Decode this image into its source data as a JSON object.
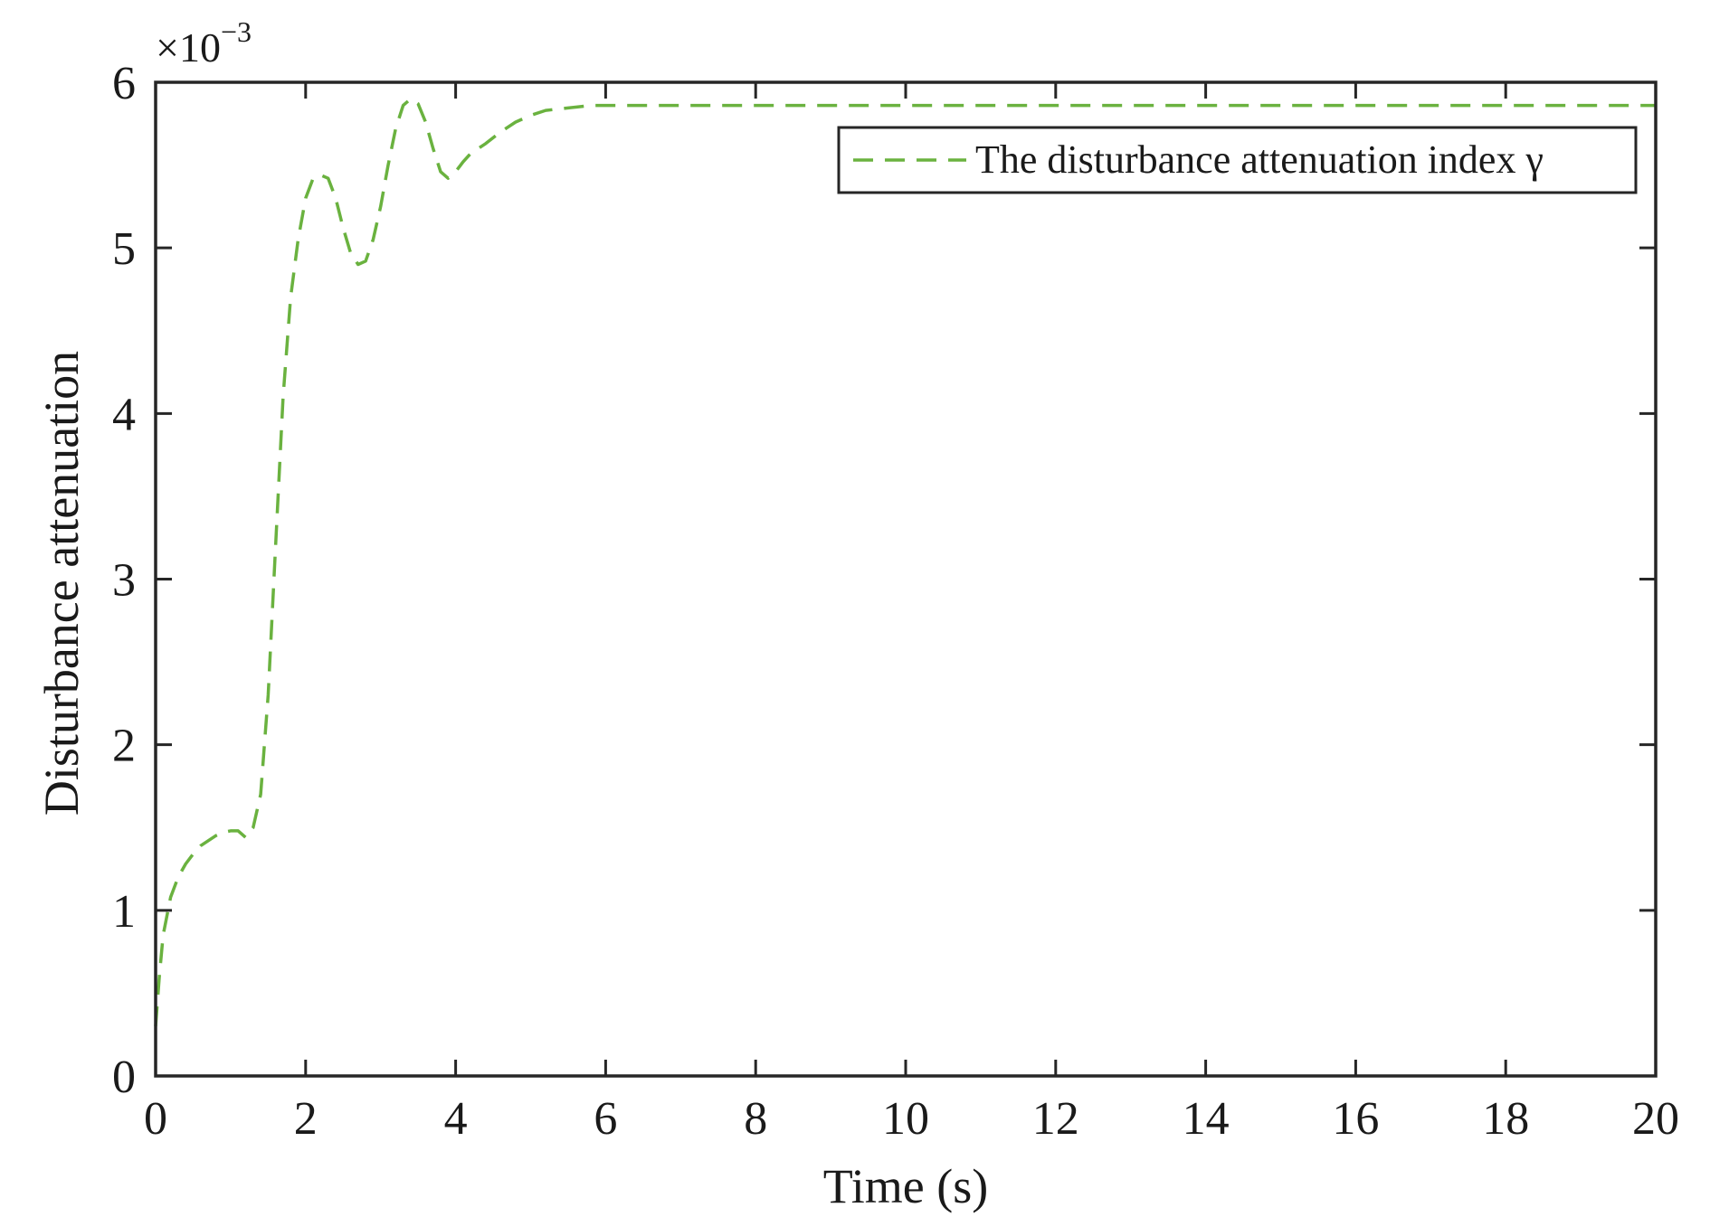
{
  "chart_data": {
    "type": "line",
    "xlabel": "Time (s)",
    "ylabel": "Disturbance attenuation",
    "xlim": [
      0,
      20
    ],
    "ylim": [
      0,
      6
    ],
    "xticks": [
      "0",
      "2",
      "4",
      "6",
      "8",
      "10",
      "12",
      "14",
      "16",
      "18",
      "20"
    ],
    "yticks": [
      "0",
      "1",
      "2",
      "3",
      "4",
      "5",
      "6"
    ],
    "y_multiplier": {
      "base": "×10",
      "exponent": "−3"
    },
    "grid": false,
    "legend_position": "top-right",
    "series": [
      {
        "name": "The disturbance attenuation index γ",
        "color": "#6ab23f",
        "style": "dashed",
        "x": [
          0,
          0.05,
          0.1,
          0.2,
          0.3,
          0.4,
          0.5,
          0.6,
          0.7,
          0.8,
          0.9,
          1.0,
          1.1,
          1.2,
          1.3,
          1.4,
          1.5,
          1.6,
          1.7,
          1.8,
          1.9,
          2.0,
          2.1,
          2.2,
          2.3,
          2.4,
          2.5,
          2.6,
          2.7,
          2.8,
          2.9,
          3.0,
          3.1,
          3.2,
          3.3,
          3.4,
          3.5,
          3.6,
          3.7,
          3.8,
          3.9,
          4.0,
          4.1,
          4.2,
          4.4,
          4.6,
          4.8,
          5.0,
          5.2,
          5.4,
          5.6,
          5.8,
          6.0,
          6.5,
          7.0,
          8.0,
          9.0,
          10.0,
          12.0,
          14.0,
          16.0,
          18.0,
          20.0
        ],
        "y": [
          0.3,
          0.6,
          0.85,
          1.08,
          1.2,
          1.28,
          1.34,
          1.39,
          1.42,
          1.45,
          1.47,
          1.48,
          1.48,
          1.44,
          1.5,
          1.7,
          2.3,
          3.2,
          4.1,
          4.7,
          5.05,
          5.3,
          5.42,
          5.44,
          5.42,
          5.3,
          5.12,
          4.97,
          4.9,
          4.92,
          5.05,
          5.25,
          5.5,
          5.72,
          5.86,
          5.9,
          5.87,
          5.76,
          5.6,
          5.46,
          5.42,
          5.46,
          5.52,
          5.57,
          5.63,
          5.7,
          5.76,
          5.8,
          5.83,
          5.84,
          5.85,
          5.86,
          5.86,
          5.86,
          5.86,
          5.86,
          5.86,
          5.86,
          5.86,
          5.86,
          5.86,
          5.86,
          5.86
        ]
      }
    ]
  }
}
